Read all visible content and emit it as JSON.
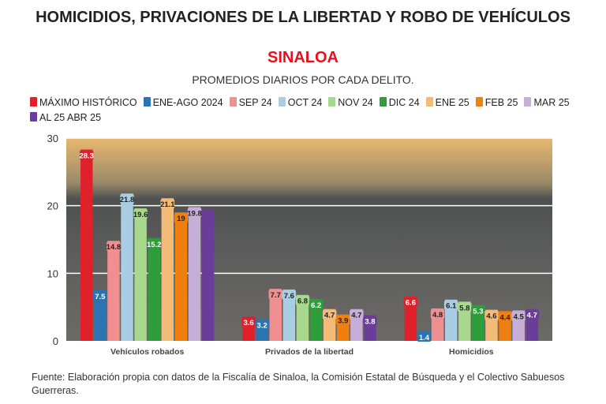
{
  "title": "HOMICIDIOS, PRIVACIONES DE LA LIBERTAD Y ROBO DE VEHÍCULOS",
  "subtitle_region": "SINALOA",
  "subtitle": "PROMEDIOS DIARIOS POR CADA DELITO.",
  "source": "Fuente: Elaboración propia con datos de la Fiscalía de Sinaloa, la Comisión Estatal de Búsqueda y el Colectivo Sabuesos Guerreras.",
  "chart_data": {
    "type": "bar",
    "categories": [
      "Vehículos robados",
      "Privados de la libertad",
      "Homicidios"
    ],
    "ylim": [
      0,
      30
    ],
    "yticks": [
      0,
      10,
      20,
      30
    ],
    "grid": true,
    "legend_placement": "top",
    "series": [
      {
        "name": "MÁXIMO HISTÓRICO",
        "color": "#e0202a",
        "values": [
          28.3,
          3.6,
          6.6
        ],
        "labels": [
          "28.3",
          "3.6",
          "6.6"
        ]
      },
      {
        "name": "ENE-AGO 2024",
        "color": "#2a74b3",
        "values": [
          7.5,
          3.2,
          1.4
        ],
        "labels": [
          "7.5",
          "3.2",
          "1.4"
        ]
      },
      {
        "name": "SEP 24",
        "color": "#ef8f8f",
        "values": [
          14.8,
          7.7,
          4.8
        ],
        "labels": [
          "14.8",
          "7.7",
          "4.8"
        ]
      },
      {
        "name": "OCT 24",
        "color": "#a9cde3",
        "values": [
          21.8,
          7.6,
          6.1
        ],
        "labels": [
          "21.8",
          "7.6",
          "6.1"
        ]
      },
      {
        "name": "NOV 24",
        "color": "#a8d88c",
        "values": [
          19.6,
          6.8,
          5.8
        ],
        "labels": [
          "19.6",
          "6.8",
          "5.8"
        ]
      },
      {
        "name": "DIC 24",
        "color": "#2f9e3a",
        "values": [
          15.2,
          6.2,
          5.3
        ],
        "labels": [
          "15.2",
          "6.2",
          "5.3"
        ]
      },
      {
        "name": "ENE 25",
        "color": "#f4bb78",
        "values": [
          21.1,
          4.7,
          4.6
        ],
        "labels": [
          "21.1",
          "4.7",
          "4.6"
        ]
      },
      {
        "name": "FEB 25",
        "color": "#f07f12",
        "values": [
          19,
          3.9,
          4.4
        ],
        "labels": [
          "19",
          "3.9",
          "4.4"
        ]
      },
      {
        "name": "MAR 25",
        "color": "#c6aed6",
        "values": [
          19.8,
          4.7,
          4.5
        ],
        "labels": [
          "19.8",
          "4.7",
          "4.5"
        ]
      },
      {
        "name": "AL 25 ABR 25",
        "color": "#6a3d9a",
        "values": [
          19.5,
          3.8,
          4.7
        ],
        "labels": [
          "",
          "3.8",
          "4.7"
        ]
      }
    ]
  }
}
